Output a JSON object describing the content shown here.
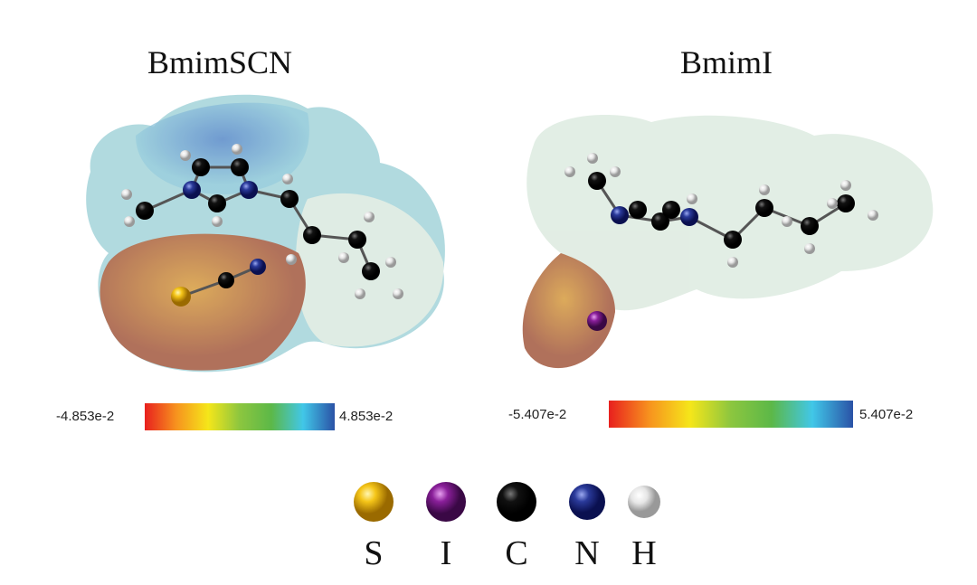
{
  "panels": [
    {
      "title": "BmimSCN",
      "colorbar": {
        "min_label": "-4.853e-2",
        "max_label": "4.853e-2"
      }
    },
    {
      "title": "BmimI",
      "colorbar": {
        "min_label": "-5.407e-2",
        "max_label": "5.407e-2"
      }
    }
  ],
  "colorbar_colors": [
    "#e8201e",
    "#f7931e",
    "#f5e61a",
    "#8cc63f",
    "#5cb848",
    "#41c7e8",
    "#2a52a6"
  ],
  "legend": [
    {
      "symbol": "S",
      "color": "#f0c020"
    },
    {
      "symbol": "I",
      "color": "#8a1f9a"
    },
    {
      "symbol": "C",
      "color": "#111111"
    },
    {
      "symbol": "N",
      "color": "#2a3a9a"
    },
    {
      "symbol": "H",
      "color": "#e8e8e8"
    }
  ]
}
